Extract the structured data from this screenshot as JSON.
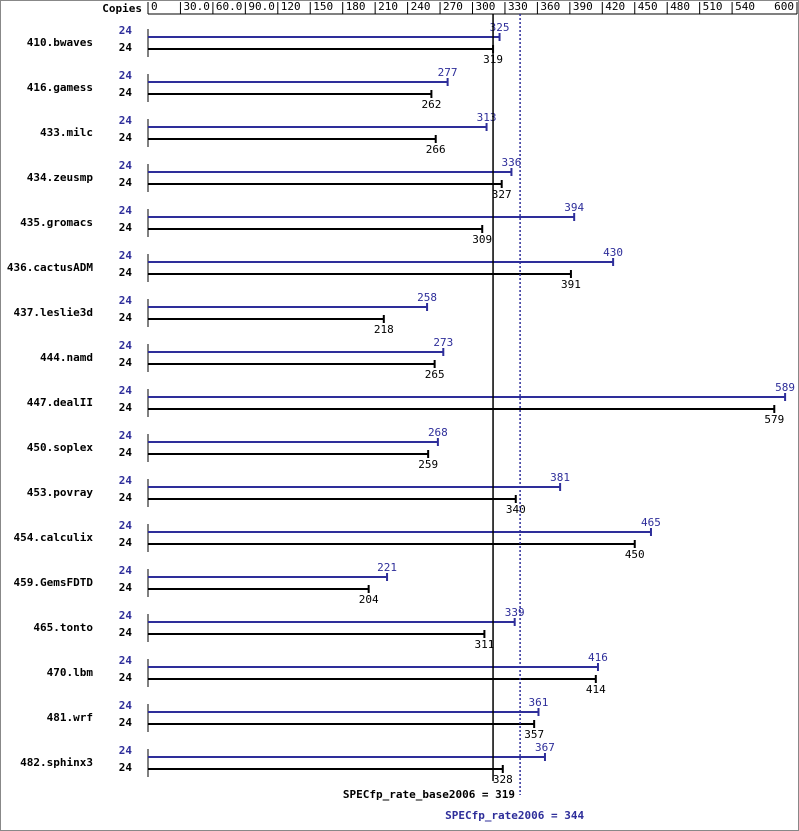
{
  "chart_data": {
    "type": "bar",
    "orientation": "horizontal",
    "copies_label": "Copies",
    "categories": [
      "410.bwaves",
      "416.gamess",
      "433.milc",
      "434.zeusmp",
      "435.gromacs",
      "436.cactusADM",
      "437.leslie3d",
      "444.namd",
      "447.dealII",
      "450.soplex",
      "453.povray",
      "454.calculix",
      "459.GemsFDTD",
      "465.tonto",
      "470.lbm",
      "481.wrf",
      "482.sphinx3"
    ],
    "series": [
      {
        "color": "#2e2e9a",
        "copies": [
          24,
          24,
          24,
          24,
          24,
          24,
          24,
          24,
          24,
          24,
          24,
          24,
          24,
          24,
          24,
          24,
          24
        ],
        "values": [
          325,
          277,
          313,
          336,
          394,
          430,
          258,
          273,
          589,
          268,
          381,
          465,
          221,
          339,
          416,
          361,
          367
        ]
      },
      {
        "color": "#000000",
        "copies": [
          24,
          24,
          24,
          24,
          24,
          24,
          24,
          24,
          24,
          24,
          24,
          24,
          24,
          24,
          24,
          24,
          24
        ],
        "values": [
          319,
          262,
          266,
          327,
          309,
          391,
          218,
          265,
          579,
          259,
          340,
          450,
          204,
          311,
          414,
          357,
          328
        ]
      }
    ],
    "reference_lines": [
      {
        "value": 319,
        "label": "SPECfp_rate_base2006 = 319",
        "color": "#000000",
        "style": "solid"
      },
      {
        "value": 344,
        "label": "SPECfp_rate2006 = 344",
        "color": "#2e2e9a",
        "style": "dotted"
      }
    ],
    "xlim": [
      0,
      600
    ],
    "xticks": [
      0,
      {
        "value": 30,
        "label": "30.0"
      },
      {
        "value": 60,
        "label": "60.0"
      },
      {
        "value": 90,
        "label": "90.0"
      },
      120,
      150,
      180,
      210,
      240,
      270,
      300,
      330,
      360,
      390,
      420,
      450,
      480,
      510,
      540,
      600
    ]
  }
}
